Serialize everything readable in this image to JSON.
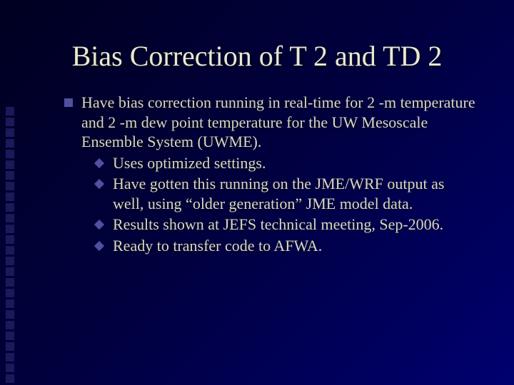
{
  "title_color": "#e8e8d0",
  "body_color": "#d8d8c0",
  "bullet_color": "#5050a0",
  "side_square_color": "#1a1a5a",
  "bg_gradient": [
    "#000020",
    "#000040",
    "#000070"
  ],
  "title_fontsize": 40,
  "body_fontsize": 22,
  "side_square_count": 26,
  "title": "Bias Correction of T 2 and TD 2",
  "main_bullet": "Have bias correction running in real-time for 2 -m temperature and 2 -m dew point temperature for the UW Mesoscale Ensemble System (UWME).",
  "sub_bullets": [
    "Uses optimized settings.",
    "Have gotten this running on the JME/WRF output as well, using “older generation” JME model data.",
    "Results shown at JEFS technical meeting, Sep-2006.",
    "Ready  to transfer code to AFWA."
  ]
}
